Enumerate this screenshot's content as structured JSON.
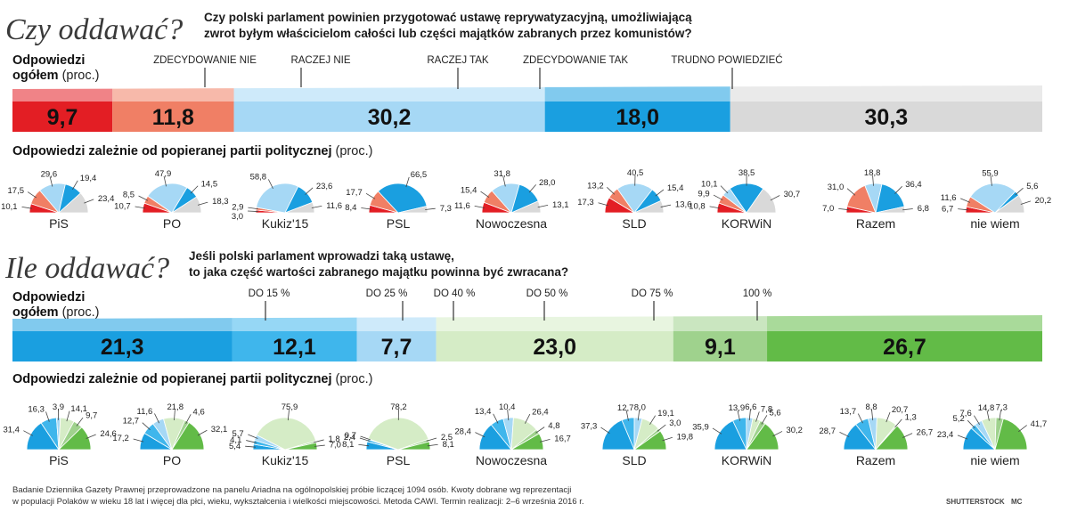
{
  "header": {
    "title1": "Czy oddawać?",
    "question1_line1": "Czy polski parlament powinien przygotować ustawę reprywatyzacyjną, umożliwiającą",
    "question1_line2": "zwrot byłym właścicielom całości lub części majątków zabranych przez komunistów?",
    "title2": "Ile oddawać?",
    "question2_line1": "Jeśli polski parlament wprowadzi taką ustawę,",
    "question2_line2": "to jaka część wartości zabranego majątku powinna być zwracana?"
  },
  "labels": {
    "total_bold_line1": "Odpowiedzi",
    "total_bold_line2": "ogółem",
    "unit": "(proc.)",
    "party_heading": "Odpowiedzi  zależnie od popieranej partii politycznej"
  },
  "footer": {
    "line1": "Badanie Dziennika Gazety Prawnej przeprowadzone na panelu Ariadna na ogólnopolskiej próbie liczącej 1094 osób. Kwoty dobrane wg reprezentacji",
    "line2": "w populacji Polaków w wieku 18 lat i więcej dla płci, wieku, wykształcenia i wielkości miejscowości. Metoda CAWI. Termin realizacji: 2–6 września 2016 r.",
    "credit": "SHUTTERSTOCK",
    "author": "MC"
  },
  "chart_data": [
    {
      "type": "bar",
      "layout": "stacked-100",
      "categories": [
        "ZDECYDOWANIE NIE",
        "RACZEJ NIE",
        "RACZEJ TAK",
        "ZDECYDOWANIE TAK",
        "TRUDNO POWIEDZIEĆ"
      ],
      "values": [
        9.7,
        11.8,
        30.2,
        18.0,
        30.3
      ],
      "value_labels": [
        "9,7",
        "11,8",
        "30,2",
        "18,0",
        "30,3"
      ],
      "colors": [
        "#e31e24",
        "#f07f65",
        "#a6d8f5",
        "#1a9fe0",
        "#d9d9d9"
      ]
    },
    {
      "type": "pie",
      "layout": "semicircle",
      "categories": [
        "ZDECYDOWANIE NIE",
        "RACZEJ NIE",
        "RACZEJ TAK",
        "ZDECYDOWANIE TAK",
        "TRUDNO POWIEDZIEĆ"
      ],
      "colors": [
        "#e31e24",
        "#f07f65",
        "#a6d8f5",
        "#1a9fe0",
        "#d9d9d9"
      ],
      "parties": [
        {
          "name": "PiS",
          "values": [
            10.1,
            17.5,
            29.6,
            19.4,
            23.4
          ],
          "labels": [
            "10,1",
            "17,5",
            "29,6",
            "19,4",
            "23,4"
          ]
        },
        {
          "name": "PO",
          "values": [
            10.7,
            8.5,
            47.9,
            14.5,
            18.3
          ],
          "labels": [
            "10,7",
            "8,5",
            "47,9",
            "14,5",
            "18,3"
          ]
        },
        {
          "name": "Kukiz'15",
          "values": [
            3.0,
            2.9,
            58.8,
            23.6,
            11.6
          ],
          "labels": [
            "3,0",
            "2,9",
            "58,8",
            "23,6",
            "11,6"
          ]
        },
        {
          "name": "PSL",
          "values": [
            8.4,
            17.7,
            0,
            66.5,
            7.3
          ],
          "labels": [
            "8,4",
            "17,7",
            "",
            "66,5",
            "7,3"
          ]
        },
        {
          "name": "Nowoczesna",
          "values": [
            11.6,
            15.4,
            31.8,
            28.0,
            13.1
          ],
          "labels": [
            "11,6",
            "15,4",
            "31,8",
            "28,0",
            "13,1"
          ]
        },
        {
          "name": "SLD",
          "values": [
            17.3,
            13.2,
            40.5,
            15.4,
            13.6
          ],
          "labels": [
            "17,3",
            "13,2",
            "40,5",
            "15,4",
            "13,6"
          ]
        },
        {
          "name": "KORWiN",
          "values": [
            10.8,
            9.9,
            10.1,
            38.5,
            30.7
          ],
          "labels": [
            "10,8",
            "9,9",
            "10,1",
            "38,5",
            "30,7"
          ]
        },
        {
          "name": "Razem",
          "values": [
            7.0,
            31.0,
            18.8,
            36.4,
            6.8
          ],
          "labels": [
            "7,0",
            "31,0",
            "18,8",
            "36,4",
            "6,8"
          ]
        },
        {
          "name": "nie wiem",
          "values": [
            6.7,
            11.6,
            55.9,
            5.6,
            20.2
          ],
          "labels": [
            "6,7",
            "11,6",
            "55,9",
            "5,6",
            "20,2"
          ]
        }
      ]
    },
    {
      "type": "bar",
      "layout": "stacked-100",
      "categories": [
        "DO 15 %",
        "DO 25 %",
        "DO 40 %",
        "DO 50 %",
        "DO 75 %",
        "100 %"
      ],
      "values": [
        21.3,
        12.1,
        7.7,
        23.0,
        9.1,
        26.7
      ],
      "value_labels": [
        "21,3",
        "12,1",
        "7,7",
        "23,0",
        "9,1",
        "26,7"
      ],
      "colors": [
        "#1a9fe0",
        "#3fb6ec",
        "#a6d8f5",
        "#d5ecc6",
        "#9fd28d",
        "#62bb47"
      ]
    },
    {
      "type": "pie",
      "layout": "semicircle",
      "categories": [
        "DO 15 %",
        "DO 25 %",
        "DO 40 %",
        "DO 50 %",
        "DO 75 %",
        "100 %"
      ],
      "colors": [
        "#1a9fe0",
        "#3fb6ec",
        "#a6d8f5",
        "#d5ecc6",
        "#9fd28d",
        "#62bb47"
      ],
      "parties": [
        {
          "name": "PiS",
          "values": [
            31.4,
            16.3,
            3.9,
            14.1,
            9.7,
            24.6
          ],
          "labels": [
            "31,4",
            "16,3",
            "3,9",
            "14,1",
            "9,7",
            "24,6"
          ]
        },
        {
          "name": "PO",
          "values": [
            17.2,
            12.7,
            11.6,
            21.8,
            4.6,
            32.1
          ],
          "labels": [
            "17,2",
            "12,7",
            "11,6",
            "21,8",
            "4,6",
            "32,1"
          ]
        },
        {
          "name": "Kukiz'15",
          "values": [
            5.4,
            4.1,
            5.7,
            75.9,
            1.8,
            7.0
          ],
          "labels": [
            "5,4",
            "4,1",
            "5,7",
            "75,9",
            "1,8",
            "7,0"
          ]
        },
        {
          "name": "PSL",
          "values": [
            8.1,
            2.4,
            0.7,
            78.2,
            2.5,
            8.1
          ],
          "labels": [
            "8,1",
            "2,4",
            "0,7",
            "78,2",
            "2,5",
            "8,1"
          ]
        },
        {
          "name": "Nowoczesna",
          "values": [
            28.4,
            13.4,
            10.4,
            26.4,
            4.8,
            16.7
          ],
          "labels": [
            "28,4",
            "13,4",
            "10,4",
            "26,4",
            "4,8",
            "16,7"
          ]
        },
        {
          "name": "SLD",
          "values": [
            37.3,
            12.7,
            8.0,
            19.1,
            3.0,
            19.8
          ],
          "labels": [
            "37,3",
            "12,7",
            "8,0",
            "19,1",
            "3,0",
            "19,8"
          ]
        },
        {
          "name": "KORWiN",
          "values": [
            35.9,
            13.9,
            6.6,
            7.8,
            5.6,
            30.2
          ],
          "labels": [
            "35,9",
            "13,9",
            "6,6",
            "7,8",
            "5,6",
            "30,2"
          ]
        },
        {
          "name": "Razem",
          "values": [
            28.7,
            13.7,
            8.8,
            20.7,
            1.3,
            26.7
          ],
          "labels": [
            "28,7",
            "13,7",
            "8,8",
            "20,7",
            "1,3",
            "26,7"
          ]
        },
        {
          "name": "nie wiem",
          "values": [
            23.4,
            5.2,
            7.6,
            14.8,
            7.3,
            41.7
          ],
          "labels": [
            "23,4",
            "5,2",
            "7,6",
            "14,8",
            "7,3",
            "41,7"
          ]
        }
      ]
    }
  ]
}
